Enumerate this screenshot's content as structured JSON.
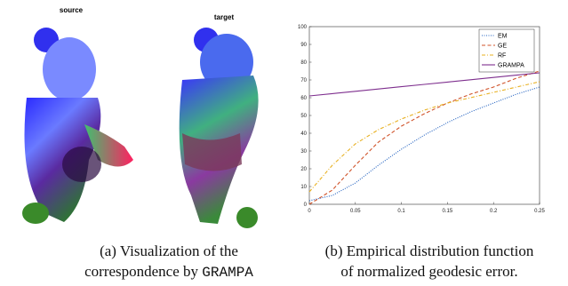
{
  "figure": {
    "source_label": "source",
    "target_label": "target",
    "caption_a": {
      "line1": "(a) Visualization of the",
      "line2": "correspondence by",
      "code": "GRAMPA"
    },
    "caption_b": {
      "line1": "(b) Empirical distribution function",
      "line2": "of normalized geodesic error."
    }
  },
  "chart_data": {
    "type": "line",
    "x": [
      0,
      0.025,
      0.05,
      0.075,
      0.1,
      0.125,
      0.15,
      0.175,
      0.2,
      0.225,
      0.25
    ],
    "series": [
      {
        "name": "EM",
        "color": "#1f5fbf",
        "style": "dotted",
        "values": [
          2,
          5,
          12,
          22,
          31,
          39,
          46,
          52,
          57,
          62,
          66
        ]
      },
      {
        "name": "GE",
        "color": "#d0532a",
        "style": "dashed",
        "values": [
          0,
          8,
          22,
          35,
          44,
          51,
          57,
          62,
          66,
          71,
          75
        ]
      },
      {
        "name": "RF",
        "color": "#e8b020",
        "style": "dashdot",
        "values": [
          7,
          22,
          34,
          42,
          48,
          53,
          57,
          60,
          63,
          66,
          69
        ]
      },
      {
        "name": "GRAMPA",
        "color": "#7e2f8e",
        "style": "solid",
        "values": [
          61,
          62.3,
          63.6,
          64.9,
          66.2,
          67.5,
          68.8,
          70.1,
          71.4,
          72.7,
          74
        ]
      }
    ],
    "xlim": [
      0,
      0.25
    ],
    "xticks": [
      0,
      0.05,
      0.1,
      0.15,
      0.2,
      0.25
    ],
    "ylim": [
      0,
      100
    ],
    "yticks": [
      0,
      10,
      20,
      30,
      40,
      50,
      60,
      70,
      80,
      90,
      100
    ],
    "legend": "top-right"
  }
}
